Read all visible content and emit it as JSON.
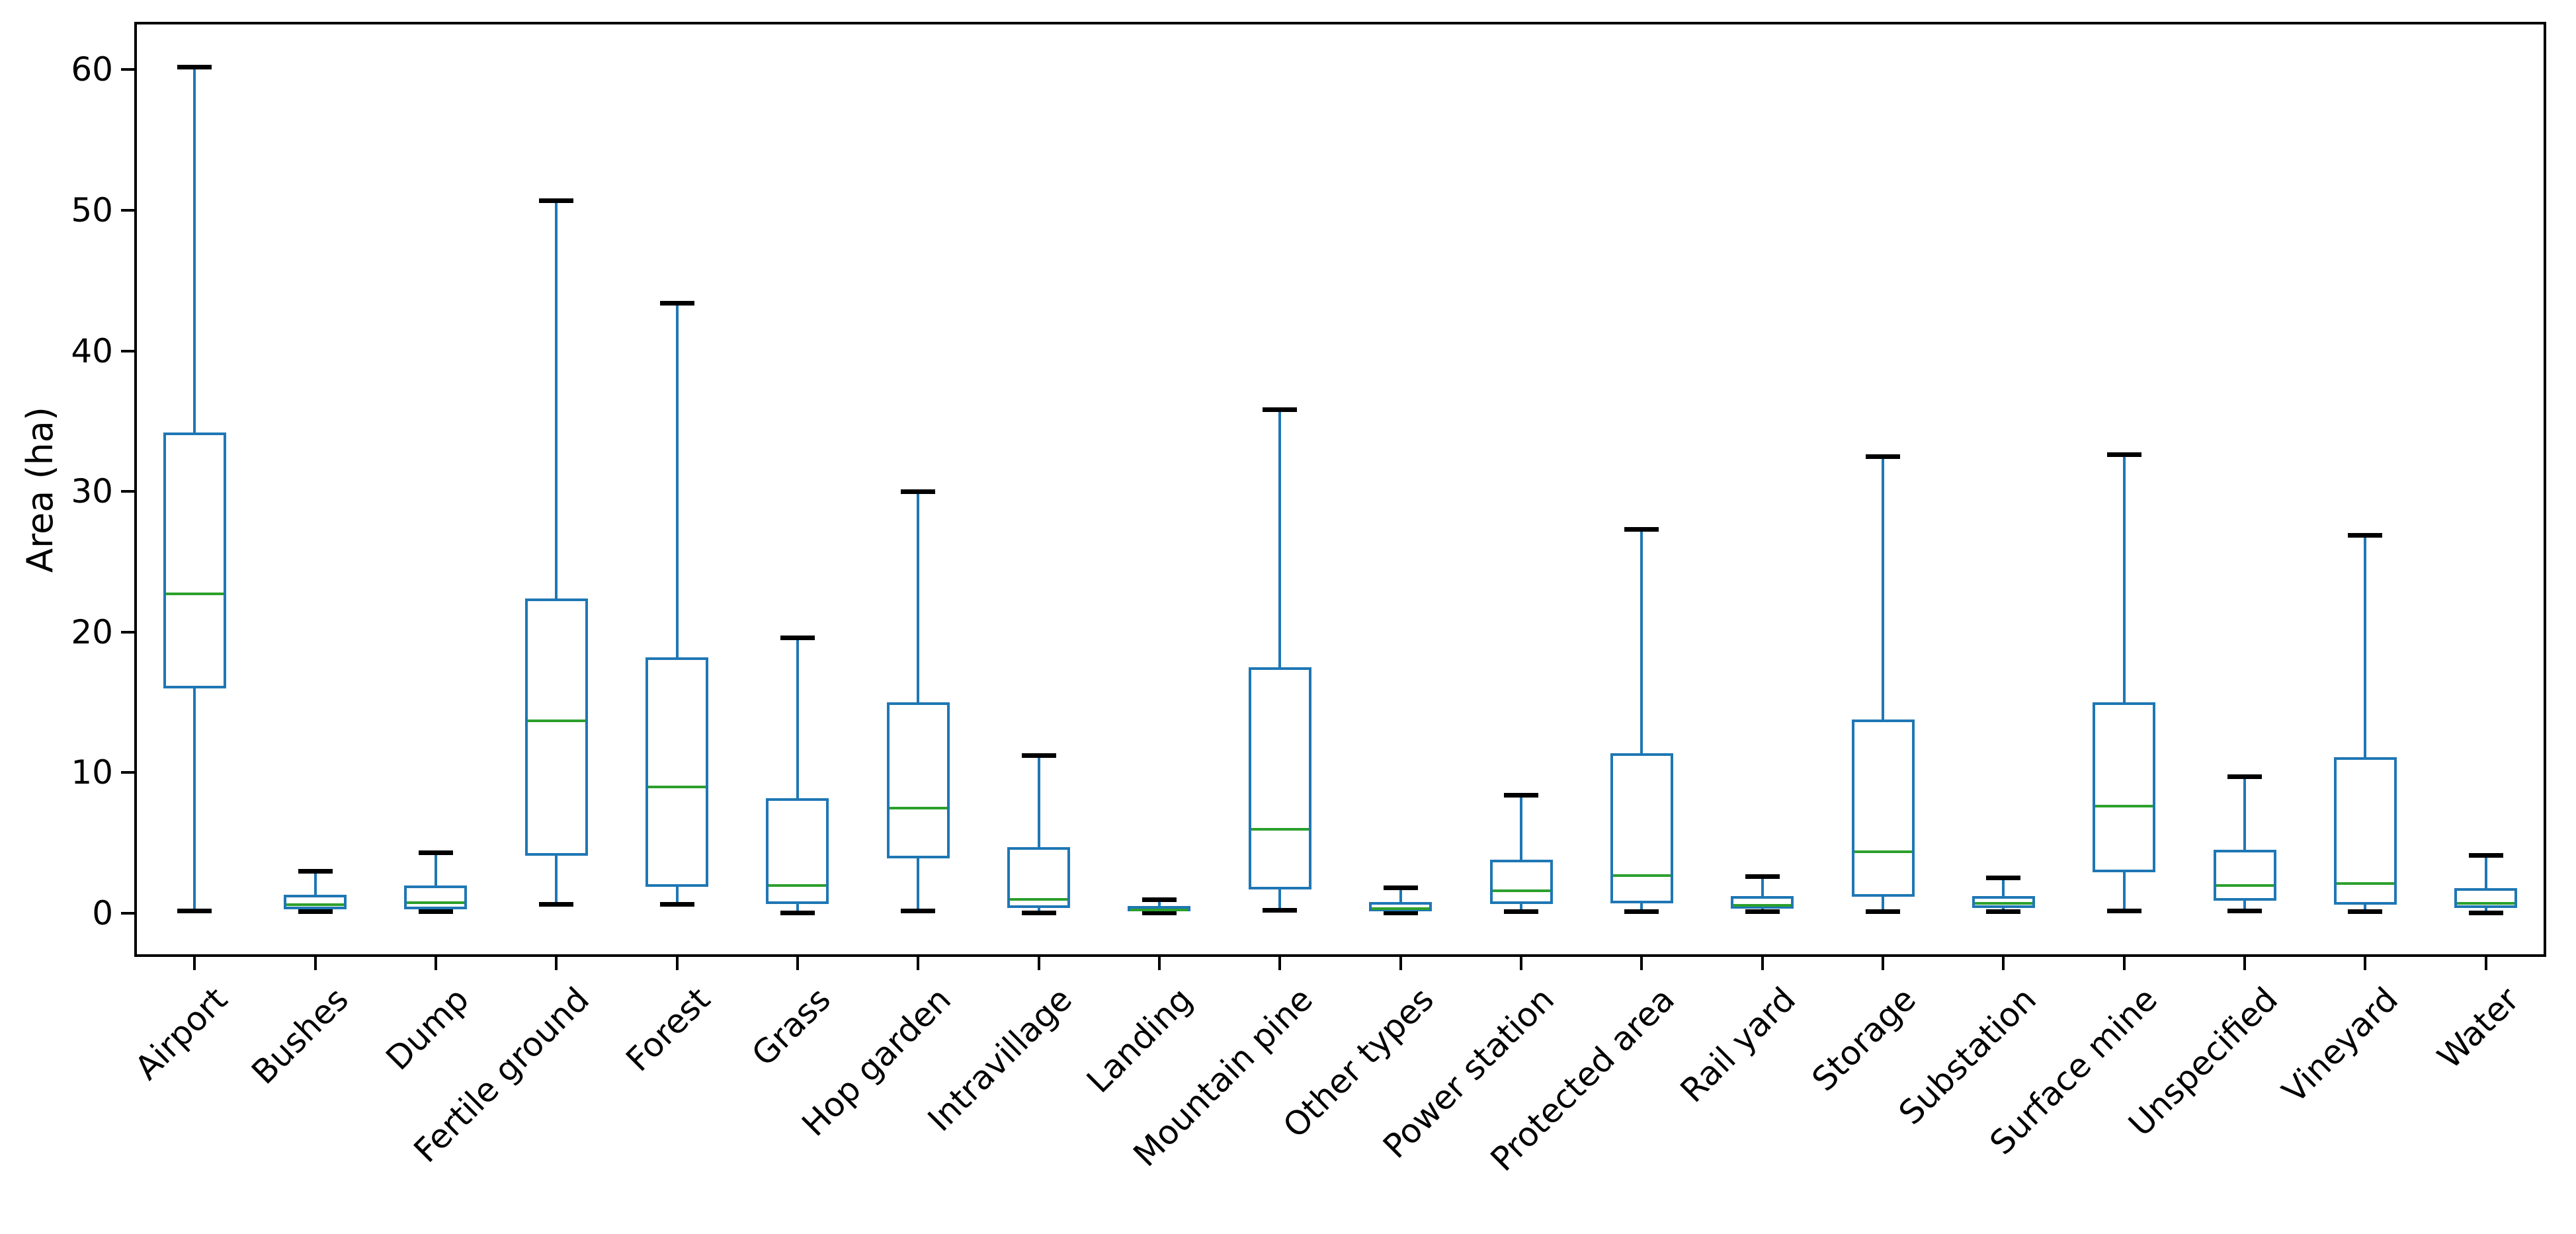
{
  "figure": {
    "background": "#ffffff",
    "text_color": "#000000"
  },
  "axes": {
    "ylabel": "Area (ha)"
  },
  "chart_data": {
    "type": "boxplot",
    "title": "",
    "xlabel": "",
    "ylabel": "Area (ha)",
    "ylim": [
      -3.1,
      63.4
    ],
    "yticks": [
      0,
      10,
      20,
      30,
      40,
      50,
      60
    ],
    "grid": false,
    "legend": "none",
    "box_color": "#1f77b4",
    "median_color": "#2ca02c",
    "cap_color": "#000000",
    "categories": [
      "Airport",
      "Bushes",
      "Dump",
      "Fertile ground",
      "Forest",
      "Grass",
      "Hop garden",
      "Intravillage",
      "Landing",
      "Mountain pine",
      "Other types",
      "Power station",
      "Protected area",
      "Rail yard",
      "Storage",
      "Substation",
      "Surface mine",
      "Unspecified",
      "Vineyard",
      "Water"
    ],
    "boxes": [
      {
        "label": "Airport",
        "whisker_low": 0.15,
        "q1": 16.0,
        "median": 22.7,
        "q3": 34.2,
        "whisker_high": 60.2
      },
      {
        "label": "Bushes",
        "whisker_low": 0.1,
        "q1": 0.3,
        "median": 0.6,
        "q3": 1.3,
        "whisker_high": 3.0
      },
      {
        "label": "Dump",
        "whisker_low": 0.1,
        "q1": 0.3,
        "median": 0.75,
        "q3": 2.0,
        "whisker_high": 4.3
      },
      {
        "label": "Fertile ground",
        "whisker_low": 0.65,
        "q1": 4.1,
        "median": 13.7,
        "q3": 22.4,
        "whisker_high": 50.7
      },
      {
        "label": "Forest",
        "whisker_low": 0.65,
        "q1": 1.9,
        "median": 9.0,
        "q3": 18.2,
        "whisker_high": 43.4
      },
      {
        "label": "Grass",
        "whisker_low": 0.05,
        "q1": 0.65,
        "median": 2.0,
        "q3": 8.2,
        "whisker_high": 19.6
      },
      {
        "label": "Hop garden",
        "whisker_low": 0.15,
        "q1": 3.9,
        "median": 7.5,
        "q3": 15.0,
        "whisker_high": 30.0
      },
      {
        "label": "Intravillage",
        "whisker_low": 0.05,
        "q1": 0.4,
        "median": 1.0,
        "q3": 4.7,
        "whisker_high": 11.2
      },
      {
        "label": "Landing",
        "whisker_low": 0.05,
        "q1": 0.15,
        "median": 0.25,
        "q3": 0.5,
        "whisker_high": 0.95
      },
      {
        "label": "Mountain pine",
        "whisker_low": 0.2,
        "q1": 1.7,
        "median": 6.0,
        "q3": 17.5,
        "whisker_high": 35.8
      },
      {
        "label": "Other types",
        "whisker_low": 0.05,
        "q1": 0.15,
        "median": 0.35,
        "q3": 0.8,
        "whisker_high": 1.8
      },
      {
        "label": "Power station",
        "whisker_low": 0.1,
        "q1": 0.65,
        "median": 1.6,
        "q3": 3.8,
        "whisker_high": 8.4
      },
      {
        "label": "Protected area",
        "whisker_low": 0.1,
        "q1": 0.7,
        "median": 2.7,
        "q3": 11.4,
        "whisker_high": 27.3
      },
      {
        "label": "Rail yard",
        "whisker_low": 0.1,
        "q1": 0.35,
        "median": 0.55,
        "q3": 1.25,
        "whisker_high": 2.6
      },
      {
        "label": "Storage",
        "whisker_low": 0.1,
        "q1": 1.2,
        "median": 4.4,
        "q3": 13.8,
        "whisker_high": 32.5
      },
      {
        "label": "Substation",
        "whisker_low": 0.1,
        "q1": 0.4,
        "median": 0.7,
        "q3": 1.25,
        "whisker_high": 2.5
      },
      {
        "label": "Surface mine",
        "whisker_low": 0.15,
        "q1": 2.9,
        "median": 7.6,
        "q3": 15.0,
        "whisker_high": 32.6
      },
      {
        "label": "Unspecified",
        "whisker_low": 0.15,
        "q1": 0.9,
        "median": 2.0,
        "q3": 4.5,
        "whisker_high": 9.7
      },
      {
        "label": "Vineyard",
        "whisker_low": 0.1,
        "q1": 0.6,
        "median": 2.1,
        "q3": 11.1,
        "whisker_high": 26.9
      },
      {
        "label": "Water",
        "whisker_low": 0.05,
        "q1": 0.4,
        "median": 0.7,
        "q3": 1.8,
        "whisker_high": 4.1
      }
    ]
  }
}
